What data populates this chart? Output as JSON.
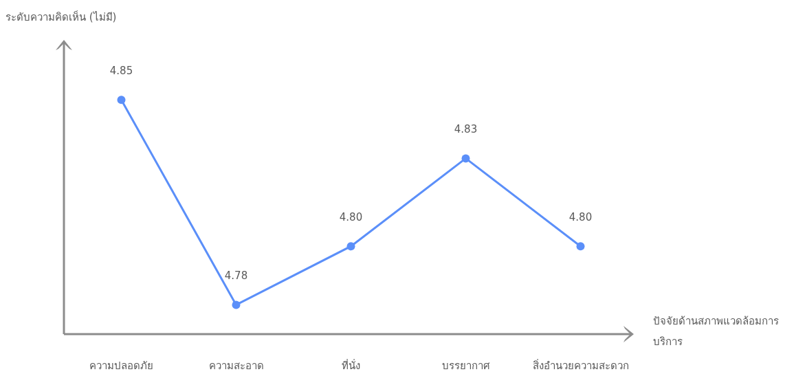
{
  "chart_data": {
    "type": "line",
    "ylabel": "ระดับความคิดเห็น (ไม่มี)",
    "xlabel": "ปัจจัยด้านสภาพแวดล้อมการบริการ",
    "categories": [
      "ความปลอดภัย",
      "ความสะอาด",
      "ที่นั่ง",
      "บรรยากาศ",
      "สิ่งอำนวยความสะดวก"
    ],
    "series": [
      {
        "color": "#5b8ff9",
        "values": [
          4.85,
          4.78,
          4.8,
          4.83,
          4.8
        ],
        "value_labels": [
          "4.85",
          "4.78",
          "4.80",
          "4.83",
          "4.80"
        ]
      }
    ],
    "ylim": [
      4.77,
      4.87
    ],
    "tick_labels": "x",
    "marker": "circle",
    "line_style": "solid"
  }
}
